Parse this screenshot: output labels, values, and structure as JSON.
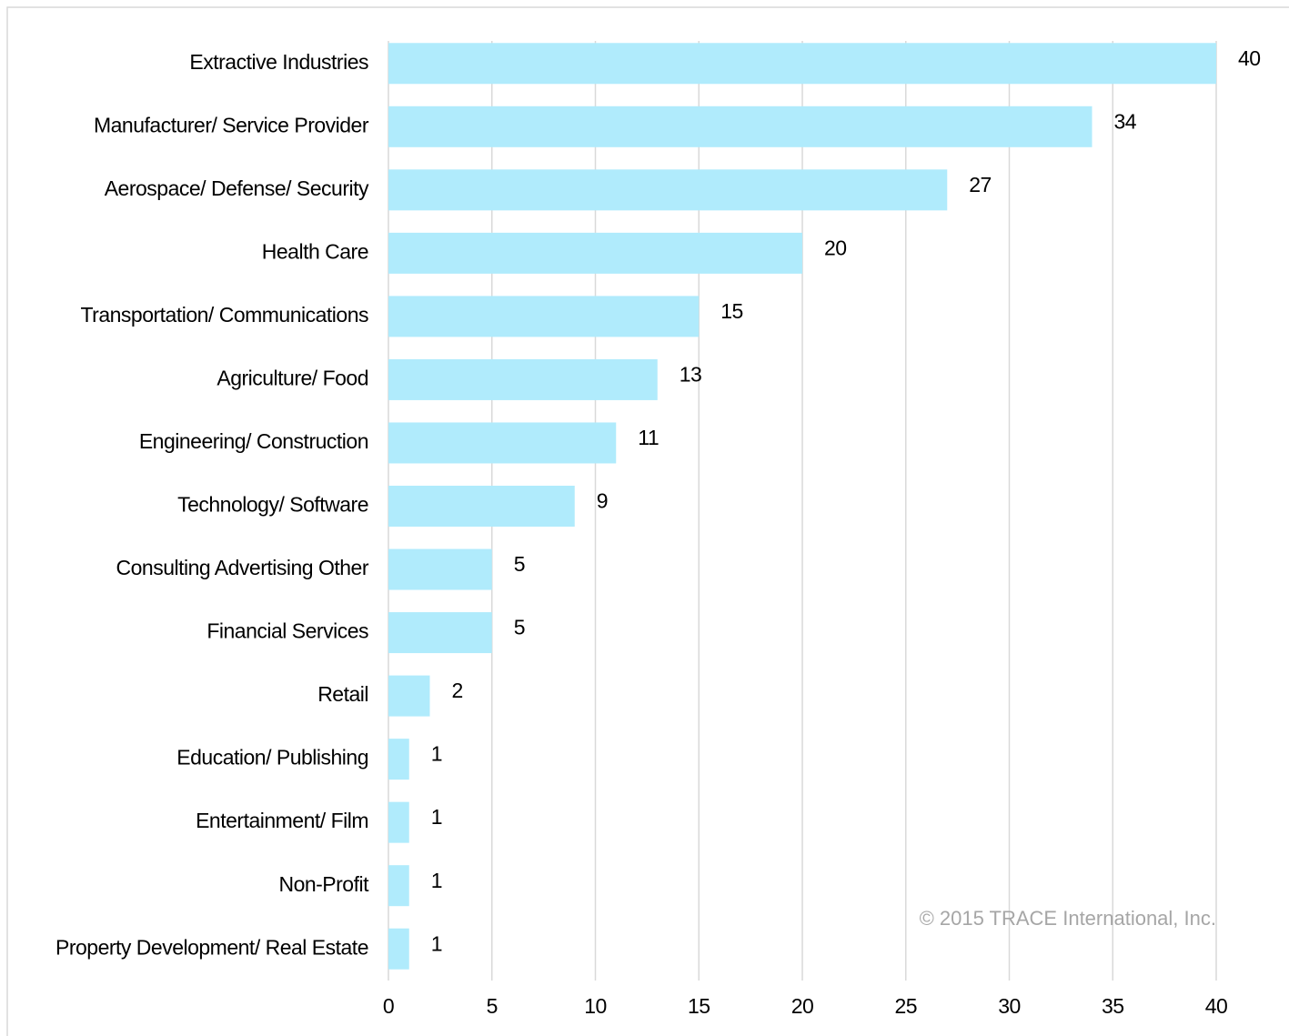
{
  "chart_data": {
    "type": "barh",
    "categories": [
      "Extractive Industries",
      "Manufacturer/ Service Provider",
      "Aerospace/ Defense/ Security",
      "Health Care",
      "Transportation/ Communications",
      "Agriculture/ Food",
      "Engineering/ Construction",
      "Technology/ Software",
      "Consulting Advertising Other",
      "Financial Services",
      "Retail",
      "Education/ Publishing",
      "Entertainment/ Film",
      "Non-Profit",
      "Property Development/ Real Estate"
    ],
    "values": [
      40,
      34,
      27,
      20,
      15,
      13,
      11,
      9,
      5,
      5,
      2,
      1,
      1,
      1,
      1
    ],
    "color": "#b0ebfc",
    "xlim": [
      0,
      40
    ],
    "xticks": [
      0,
      5,
      10,
      15,
      20,
      25,
      30,
      35,
      40
    ],
    "grid": true,
    "annotation": "© 2015 TRACE International, Inc."
  }
}
